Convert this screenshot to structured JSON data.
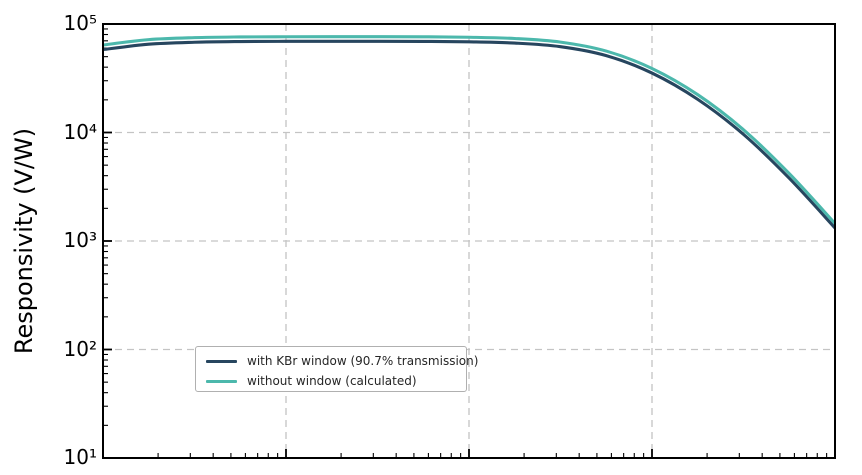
{
  "figure": {
    "background": "#ffffff"
  },
  "chart_data": {
    "type": "line",
    "title": "",
    "xlabel": "",
    "ylabel": "Responsivity (V/W)",
    "x_axis": {
      "scale": "log",
      "decade_span": 4,
      "tick_labels_visible": false,
      "note": "x tick labels are cropped out of the image; major gridlines at each decade"
    },
    "y_axis": {
      "scale": "log",
      "min": 10,
      "max": 100000,
      "tick_labels": [
        "10⁵",
        "10⁴",
        "10³",
        "10²",
        "10¹"
      ]
    },
    "grid": {
      "on": true,
      "color": "#c4c4c4",
      "style": "dashed"
    },
    "legend_position": "lower left",
    "x_decades": [
      0,
      0.25,
      0.5,
      0.75,
      1.0,
      1.25,
      1.5,
      1.75,
      2.0,
      2.25,
      2.5,
      2.75,
      3.0,
      3.25,
      3.5,
      3.75,
      4.0
    ],
    "series": [
      {
        "name": "with KBr window (90.7% transmission)",
        "color": "#27465f",
        "values": [
          58100,
          65100,
          67900,
          68900,
          69200,
          69300,
          69300,
          69100,
          68500,
          66700,
          61800,
          51100,
          35300,
          20200,
          9610,
          3790,
          1320
        ]
      },
      {
        "name": "without window (calculated)",
        "color": "#4cb8ac",
        "values": [
          64000,
          71800,
          74900,
          76000,
          76300,
          76400,
          76400,
          76200,
          75500,
          73500,
          68100,
          56300,
          38900,
          22300,
          10600,
          4180,
          1450
        ]
      }
    ],
    "axis_color": "#000000",
    "tick_direction": "in"
  }
}
